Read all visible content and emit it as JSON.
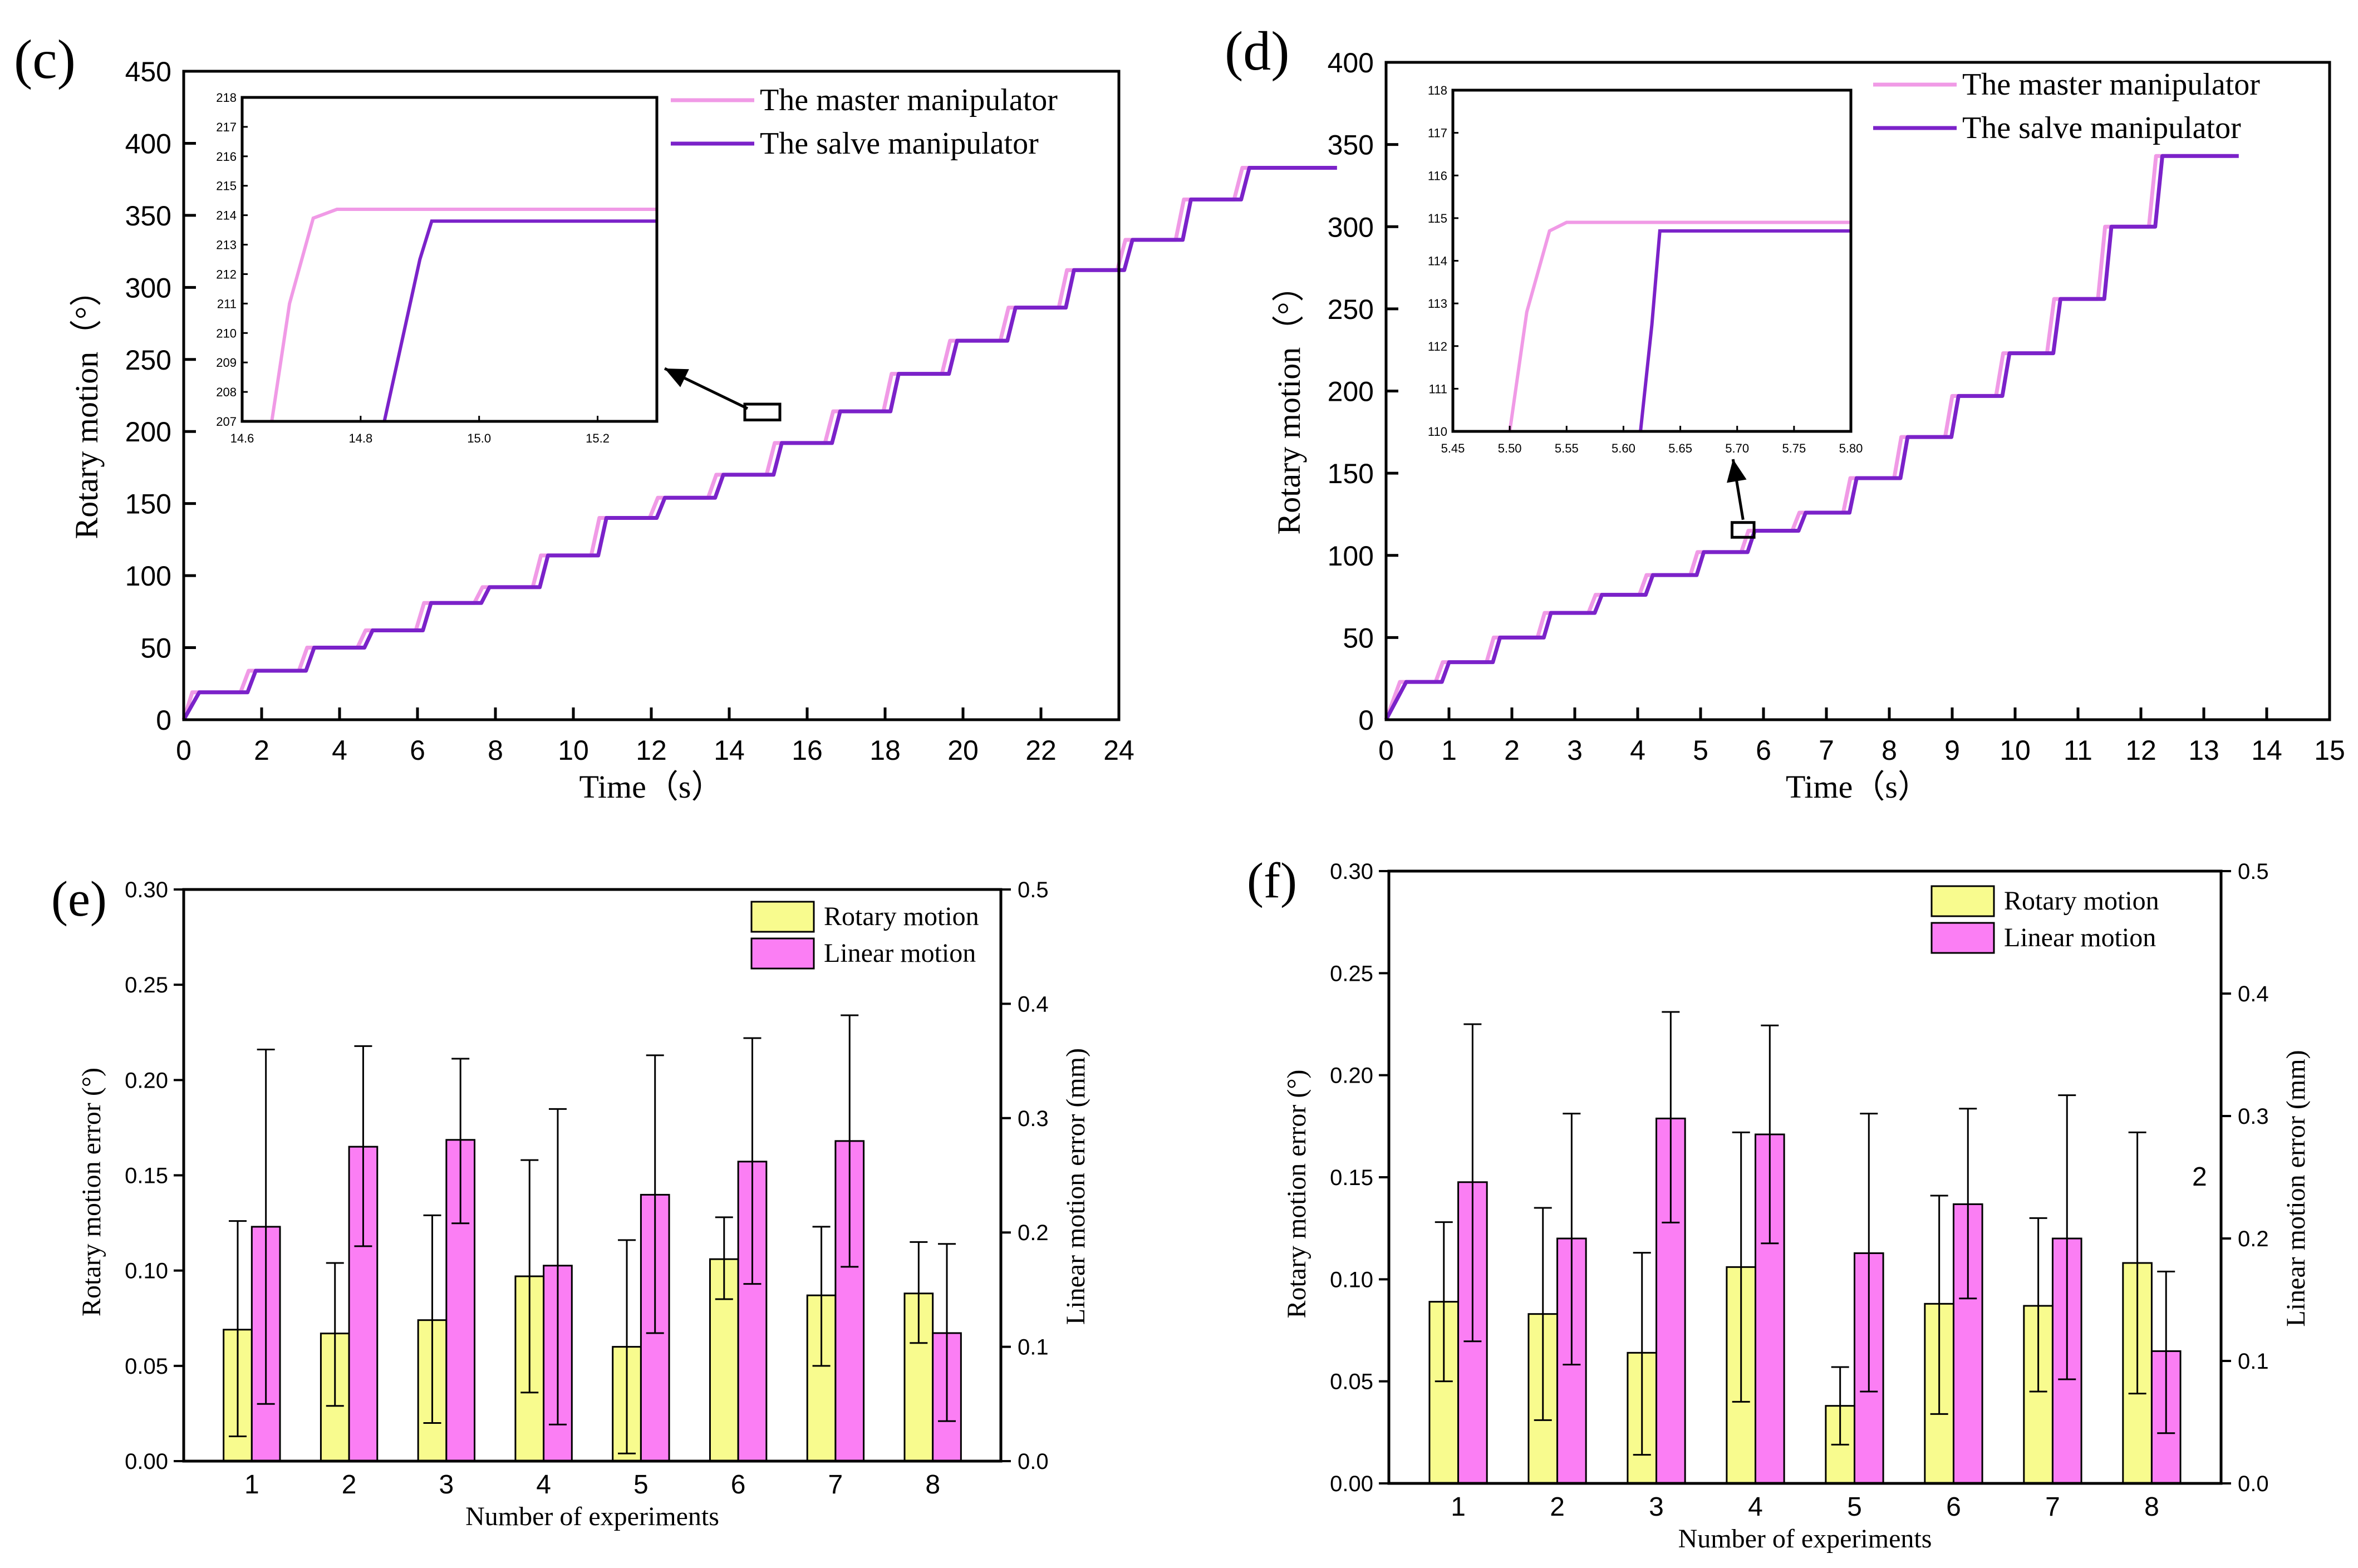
{
  "chart_data": [
    {
      "id": "c",
      "panel_label": "(c)",
      "type": "line",
      "xlabel": "Time（s）",
      "ylabel": "Rotary motion（°）",
      "xlim": [
        0,
        24
      ],
      "ylim": [
        0,
        450
      ],
      "xticks": [
        0,
        2,
        4,
        6,
        8,
        10,
        12,
        14,
        16,
        18,
        20,
        22,
        24
      ],
      "yticks": [
        0,
        50,
        100,
        150,
        200,
        250,
        300,
        350,
        400,
        450
      ],
      "step_interval": 1.5,
      "step_lag": 0.18,
      "levels": [
        19,
        34,
        50,
        62,
        81,
        92,
        114,
        140,
        154,
        170,
        192,
        214,
        240,
        263,
        286,
        312,
        333,
        361,
        383
      ],
      "series": [
        {
          "name": "The master manipulator",
          "color": "#f09ae6",
          "lag": 0
        },
        {
          "name": "The salve manipulator",
          "color": "#7b22c9",
          "lag": 0.18
        }
      ],
      "legend_position": "top-right",
      "inset": {
        "xlim": [
          14.6,
          15.3
        ],
        "ylim": [
          207,
          218
        ],
        "xticks": [
          "14.6",
          "14.8",
          "15.0",
          "15.2"
        ],
        "yticks": [
          207,
          208,
          209,
          210,
          211,
          212,
          213,
          214,
          215,
          216,
          217,
          218
        ],
        "master": [
          [
            14.65,
            207
          ],
          [
            14.68,
            211
          ],
          [
            14.72,
            213.9
          ],
          [
            14.76,
            214.2
          ],
          [
            15.3,
            214.2
          ]
        ],
        "salve": [
          [
            14.84,
            207
          ],
          [
            14.9,
            212.5
          ],
          [
            14.92,
            213.8
          ],
          [
            15.3,
            213.8
          ]
        ],
        "zoom_box": {
          "x": [
            14.4,
            15.3
          ],
          "y": [
            208,
            219
          ]
        }
      }
    },
    {
      "id": "d",
      "panel_label": "(d)",
      "type": "line",
      "xlabel": "Time（s）",
      "ylabel": "Rotary motion（°）",
      "xlim": [
        0,
        15
      ],
      "ylim": [
        0,
        400
      ],
      "xticks": [
        0,
        1,
        2,
        3,
        4,
        5,
        6,
        7,
        8,
        9,
        10,
        11,
        12,
        13,
        14,
        15
      ],
      "yticks": [
        0,
        50,
        100,
        150,
        200,
        250,
        300,
        350,
        400
      ],
      "step_interval": 0.81,
      "step_lag": 0.1,
      "levels": [
        23,
        35,
        50,
        65,
        76,
        88,
        102,
        115,
        126,
        147,
        172,
        197,
        223,
        256,
        300,
        343
      ],
      "series": [
        {
          "name": "The master manipulator",
          "color": "#f09ae6",
          "lag": 0
        },
        {
          "name": "The salve manipulator",
          "color": "#7b22c9",
          "lag": 0.1
        }
      ],
      "legend_position": "top-right",
      "inset": {
        "xlim": [
          5.45,
          5.8
        ],
        "ylim": [
          110,
          118
        ],
        "xticks": [
          "5.45",
          "5.50",
          "5.55",
          "5.60",
          "5.65",
          "5.70",
          "5.75",
          "5.80"
        ],
        "yticks": [
          110,
          111,
          112,
          113,
          114,
          115,
          116,
          117,
          118
        ],
        "master": [
          [
            5.5,
            110
          ],
          [
            5.515,
            112.8
          ],
          [
            5.535,
            114.7
          ],
          [
            5.55,
            114.9
          ],
          [
            5.8,
            114.9
          ]
        ],
        "salve": [
          [
            5.615,
            110
          ],
          [
            5.625,
            112.5
          ],
          [
            5.632,
            114.7
          ],
          [
            5.8,
            114.7
          ]
        ],
        "zoom_box": {
          "x": [
            5.5,
            5.85
          ],
          "y": [
            111,
            120
          ]
        }
      }
    },
    {
      "id": "e",
      "panel_label": "(e)",
      "type": "bar",
      "xlabel": "Number of experiments",
      "ylabel": "Rotary motion error (°)",
      "y2label": "Linear motion error (mm)",
      "categories": [
        "1",
        "2",
        "3",
        "4",
        "5",
        "6",
        "7",
        "8"
      ],
      "ylim": [
        0,
        0.3
      ],
      "y2lim": [
        0,
        0.5
      ],
      "yticks": [
        "0.00",
        "0.05",
        "0.10",
        "0.15",
        "0.20",
        "0.25",
        "0.30"
      ],
      "y2ticks": [
        "0.0",
        "0.1",
        "0.2",
        "0.3",
        "0.4",
        "0.5"
      ],
      "series": [
        {
          "name": "Rotary motion",
          "color": "#f8fb8e",
          "axis": "left",
          "values": [
            0.069,
            0.067,
            0.074,
            0.097,
            0.06,
            0.106,
            0.087,
            0.088
          ],
          "err_low": [
            0.013,
            0.029,
            0.02,
            0.036,
            0.004,
            0.085,
            0.05,
            0.062
          ],
          "err_high": [
            0.126,
            0.104,
            0.129,
            0.158,
            0.116,
            0.128,
            0.123,
            0.115
          ]
        },
        {
          "name": "Linear motion",
          "color": "#fb7ef4",
          "axis": "right",
          "values": [
            0.205,
            0.275,
            0.281,
            0.171,
            0.233,
            0.262,
            0.28,
            0.112
          ],
          "err_low": [
            0.05,
            0.188,
            0.208,
            0.032,
            0.112,
            0.155,
            0.17,
            0.035
          ],
          "err_high": [
            0.36,
            0.363,
            0.352,
            0.308,
            0.355,
            0.37,
            0.39,
            0.19
          ]
        }
      ],
      "legend_position": "top-right",
      "annotations": []
    },
    {
      "id": "f",
      "panel_label": "(f)",
      "type": "bar",
      "xlabel": "Number of experiments",
      "ylabel": "Rotary motion error (°)",
      "y2label": "Linear motion error (mm)",
      "categories": [
        "1",
        "2",
        "3",
        "4",
        "5",
        "6",
        "7",
        "8"
      ],
      "ylim": [
        0,
        0.3
      ],
      "y2lim": [
        0,
        0.5
      ],
      "yticks": [
        "0.00",
        "0.05",
        "0.10",
        "0.15",
        "0.20",
        "0.25",
        "0.30"
      ],
      "y2ticks": [
        "0.0",
        "0.1",
        "0.2",
        "0.3",
        "0.4",
        "0.5"
      ],
      "series": [
        {
          "name": "Rotary motion",
          "color": "#f8fb8e",
          "axis": "left",
          "values": [
            0.089,
            0.083,
            0.064,
            0.106,
            0.038,
            0.088,
            0.087,
            0.108
          ],
          "err_low": [
            0.05,
            0.031,
            0.014,
            0.04,
            0.019,
            0.034,
            0.045,
            0.044
          ],
          "err_high": [
            0.128,
            0.135,
            0.113,
            0.172,
            0.057,
            0.141,
            0.13,
            0.172
          ]
        },
        {
          "name": "Linear motion",
          "color": "#fb7ef4",
          "axis": "right",
          "values": [
            0.246,
            0.2,
            0.298,
            0.285,
            0.188,
            0.228,
            0.2,
            0.108
          ],
          "err_low": [
            0.116,
            0.097,
            0.213,
            0.196,
            0.075,
            0.151,
            0.085,
            0.041
          ],
          "err_high": [
            0.375,
            0.302,
            0.385,
            0.374,
            0.302,
            0.306,
            0.317,
            0.173
          ]
        }
      ],
      "legend_position": "top-right",
      "annotations": [
        "2"
      ]
    }
  ]
}
